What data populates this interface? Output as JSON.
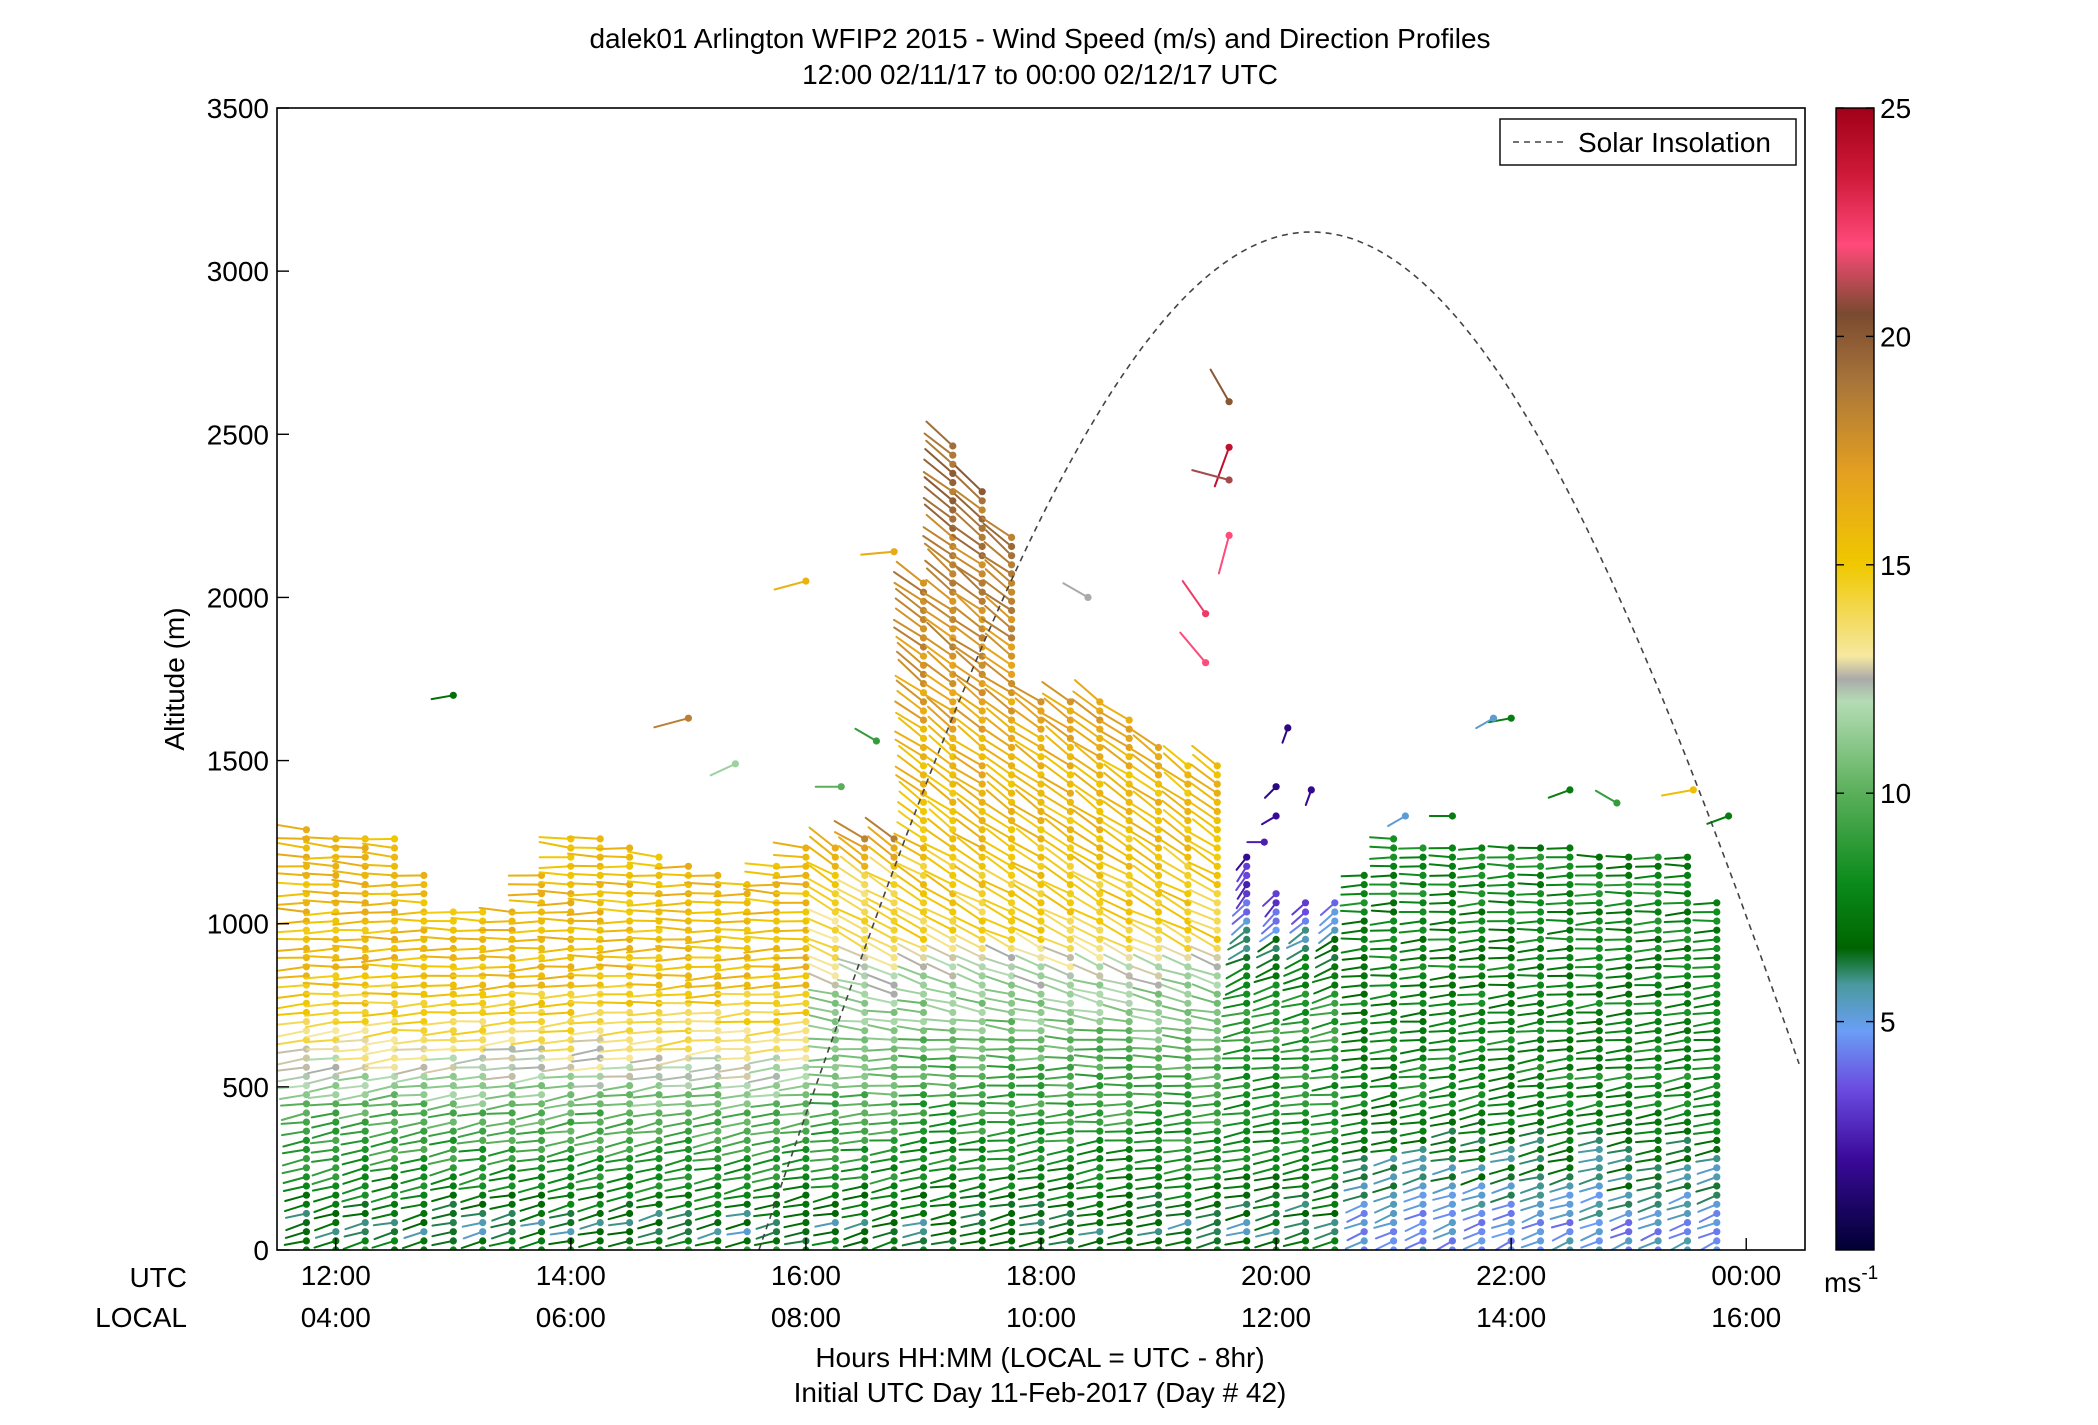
{
  "chart_data": {
    "type": "scatter",
    "title": "dalek01 Arlington WFIP2 2015 - Wind Speed (m/s) and Direction Profiles",
    "subtitle": "12:00 02/11/17 to 00:00 02/12/17  UTC",
    "ylabel": "Altitude (m)",
    "xlabel": "Hours HH:MM  (LOCAL = UTC - 8hr)",
    "xlabel2": "Initial UTC Day 11-Feb-2017 (Day # 42)",
    "row_label_utc": "UTC",
    "row_label_local": "LOCAL",
    "xlim_hours_utc": [
      11.5,
      24.5
    ],
    "ylim": [
      0,
      3500
    ],
    "y_ticks": [
      "0",
      "500",
      "1000",
      "1500",
      "2000",
      "2500",
      "3000",
      "3500"
    ],
    "x_ticks_utc": [
      "12:00",
      "14:00",
      "16:00",
      "18:00",
      "20:00",
      "22:00",
      "00:00"
    ],
    "x_ticks_local": [
      "04:00",
      "06:00",
      "08:00",
      "10:00",
      "12:00",
      "14:00",
      "16:00"
    ],
    "legend": {
      "label": "Solar Insolation",
      "placement": "top-right"
    },
    "colorbar": {
      "label_base": "ms",
      "label_exp": "-1",
      "range": [
        0,
        25
      ],
      "ticks": [
        "5",
        "10",
        "15",
        "20",
        "25"
      ],
      "stops": [
        {
          "v": 0,
          "c": "#000033"
        },
        {
          "v": 2,
          "c": "#3a0a9a"
        },
        {
          "v": 3.5,
          "c": "#6a4ae0"
        },
        {
          "v": 4.8,
          "c": "#6a9ef5"
        },
        {
          "v": 5.8,
          "c": "#4a9aa0"
        },
        {
          "v": 6.6,
          "c": "#006400"
        },
        {
          "v": 8,
          "c": "#0a8a1a"
        },
        {
          "v": 10,
          "c": "#5aaf5a"
        },
        {
          "v": 12,
          "c": "#b4dcb4"
        },
        {
          "v": 12.5,
          "c": "#aaaaaa"
        },
        {
          "v": 13,
          "c": "#f6e8a0"
        },
        {
          "v": 15,
          "c": "#f0c800"
        },
        {
          "v": 17,
          "c": "#e4a020"
        },
        {
          "v": 19,
          "c": "#a8753a"
        },
        {
          "v": 20.5,
          "c": "#7a4a30"
        },
        {
          "v": 22,
          "c": "#ff4a7a"
        },
        {
          "v": 23.5,
          "c": "#d01a3a"
        },
        {
          "v": 25,
          "c": "#a00018"
        }
      ]
    },
    "solar_insolation_curve": {
      "peak_time_utc": 20.3,
      "peak_altitude_m": 3120,
      "half_width_hours": 4.7
    },
    "wind_profiles": {
      "times_utc_start": 11.75,
      "times_utc_end": 23.85,
      "time_step_hours": 0.25,
      "lowest_altitude_m": 0,
      "level_spacing_m": 28,
      "top_altitude_m": [
        [
          11.75,
          1290
        ],
        [
          12.5,
          1280
        ],
        [
          13.0,
          1060
        ],
        [
          13.5,
          1060
        ],
        [
          14.0,
          1270
        ],
        [
          14.5,
          1250
        ],
        [
          15.0,
          1200
        ],
        [
          15.5,
          1140
        ],
        [
          16.0,
          1240
        ],
        [
          16.5,
          1270
        ],
        [
          16.75,
          1270
        ],
        [
          17.0,
          2050
        ],
        [
          17.25,
          2470
        ],
        [
          17.5,
          2350
        ],
        [
          17.75,
          2200
        ],
        [
          18.0,
          1700
        ],
        [
          18.5,
          1700
        ],
        [
          19.0,
          1550
        ],
        [
          19.25,
          1500
        ],
        [
          19.5,
          1500
        ],
        [
          19.75,
          1220
        ],
        [
          20.0,
          1100
        ],
        [
          20.25,
          1080
        ],
        [
          20.5,
          1070
        ],
        [
          21.0,
          1260
        ],
        [
          21.5,
          1250
        ],
        [
          22.0,
          1240
        ],
        [
          22.5,
          1240
        ],
        [
          23.0,
          1220
        ],
        [
          23.5,
          1210
        ],
        [
          23.85,
          1020
        ]
      ],
      "speed_field_m_s": [
        {
          "t0": 11.5,
          "t1": 16.2,
          "layers": [
            [
              0,
              8
            ],
            [
              60,
              6
            ],
            [
              200,
              8
            ],
            [
              420,
              10
            ],
            [
              600,
              13
            ],
            [
              700,
              14.2
            ],
            [
              850,
              15.5
            ],
            [
              1300,
              15.8
            ]
          ]
        },
        {
          "t0": 16.2,
          "t1": 17.0,
          "layers": [
            [
              0,
              8
            ],
            [
              60,
              6
            ],
            [
              200,
              8
            ],
            [
              480,
              10
            ],
            [
              760,
              11.5
            ],
            [
              900,
              13.5
            ],
            [
              1150,
              14.5
            ],
            [
              1300,
              19
            ]
          ]
        },
        {
          "t0": 17.0,
          "t1": 19.6,
          "layers": [
            [
              0,
              8
            ],
            [
              60,
              6
            ],
            [
              250,
              8
            ],
            [
              600,
              10
            ],
            [
              850,
              12
            ],
            [
              950,
              14.5
            ],
            [
              1500,
              16
            ],
            [
              1900,
              18
            ],
            [
              2500,
              19.5
            ]
          ]
        },
        {
          "t0": 19.6,
          "t1": 20.6,
          "layers": [
            [
              0,
              8
            ],
            [
              60,
              6
            ],
            [
              300,
              8
            ],
            [
              700,
              9
            ],
            [
              900,
              7
            ],
            [
              1100,
              3
            ],
            [
              1500,
              2
            ]
          ]
        },
        {
          "t0": 20.6,
          "t1": 25.0,
          "layers": [
            [
              0,
              5
            ],
            [
              80,
              4.8
            ],
            [
              220,
              6
            ],
            [
              500,
              8
            ],
            [
              800,
              7.5
            ],
            [
              1300,
              8
            ]
          ]
        }
      ],
      "direction_regimes": [
        {
          "t0": 11.5,
          "t1": 16.2,
          "layers": [
            [
              0,
              255
            ],
            [
              500,
              262
            ],
            [
              1300,
              275
            ]
          ]
        },
        {
          "t0": 16.2,
          "t1": 19.6,
          "layers": [
            [
              0,
              255
            ],
            [
              600,
              270
            ],
            [
              900,
              295
            ],
            [
              1300,
              305
            ],
            [
              2500,
              310
            ]
          ]
        },
        {
          "t0": 19.6,
          "t1": 20.6,
          "layers": [
            [
              0,
              255
            ],
            [
              600,
              265
            ],
            [
              900,
              245
            ],
            [
              1100,
              220
            ],
            [
              1500,
              200
            ]
          ]
        },
        {
          "t0": 20.6,
          "t1": 25.0,
          "layers": [
            [
              0,
              245
            ],
            [
              300,
              258
            ],
            [
              800,
              265
            ],
            [
              1300,
              270
            ]
          ]
        }
      ]
    },
    "isolated_barbs": [
      {
        "t": 13.0,
        "alt": 1700,
        "speed": 7,
        "dir": 260
      },
      {
        "t": 15.0,
        "alt": 1630,
        "speed": 18.5,
        "dir": 255
      },
      {
        "t": 15.4,
        "alt": 1490,
        "speed": 11.5,
        "dir": 245
      },
      {
        "t": 16.0,
        "alt": 2050,
        "speed": 16,
        "dir": 255
      },
      {
        "t": 16.75,
        "alt": 2140,
        "speed": 16.5,
        "dir": 265
      },
      {
        "t": 16.3,
        "alt": 1420,
        "speed": 10,
        "dir": 270
      },
      {
        "t": 16.6,
        "alt": 1560,
        "speed": 9,
        "dir": 300
      },
      {
        "t": 18.4,
        "alt": 2000,
        "speed": 12.5,
        "dir": 300
      },
      {
        "t": 19.4,
        "alt": 1800,
        "speed": 22,
        "dir": 320
      },
      {
        "t": 19.4,
        "alt": 1950,
        "speed": 22.5,
        "dir": 325
      },
      {
        "t": 19.6,
        "alt": 2460,
        "speed": 24,
        "dir": 200
      },
      {
        "t": 19.6,
        "alt": 2600,
        "speed": 20,
        "dir": 330
      },
      {
        "t": 19.6,
        "alt": 2360,
        "speed": 21,
        "dir": 285
      },
      {
        "t": 19.6,
        "alt": 2190,
        "speed": 22,
        "dir": 195
      },
      {
        "t": 20.1,
        "alt": 1600,
        "speed": 1.5,
        "dir": 200
      },
      {
        "t": 20.0,
        "alt": 1420,
        "speed": 1.5,
        "dir": 225
      },
      {
        "t": 20.3,
        "alt": 1410,
        "speed": 1.8,
        "dir": 200
      },
      {
        "t": 20.0,
        "alt": 1330,
        "speed": 2,
        "dir": 240
      },
      {
        "t": 19.9,
        "alt": 1250,
        "speed": 2.5,
        "dir": 270
      },
      {
        "t": 21.1,
        "alt": 1330,
        "speed": 5.2,
        "dir": 240
      },
      {
        "t": 21.5,
        "alt": 1330,
        "speed": 7.5,
        "dir": 270
      },
      {
        "t": 22.0,
        "alt": 1630,
        "speed": 7.5,
        "dir": 260
      },
      {
        "t": 21.85,
        "alt": 1630,
        "speed": 5.2,
        "dir": 240
      },
      {
        "t": 22.5,
        "alt": 1410,
        "speed": 7.5,
        "dir": 250
      },
      {
        "t": 22.9,
        "alt": 1370,
        "speed": 9,
        "dir": 300
      },
      {
        "t": 23.55,
        "alt": 1410,
        "speed": 15.5,
        "dir": 260
      },
      {
        "t": 23.85,
        "alt": 1330,
        "speed": 7.5,
        "dir": 250
      }
    ]
  }
}
